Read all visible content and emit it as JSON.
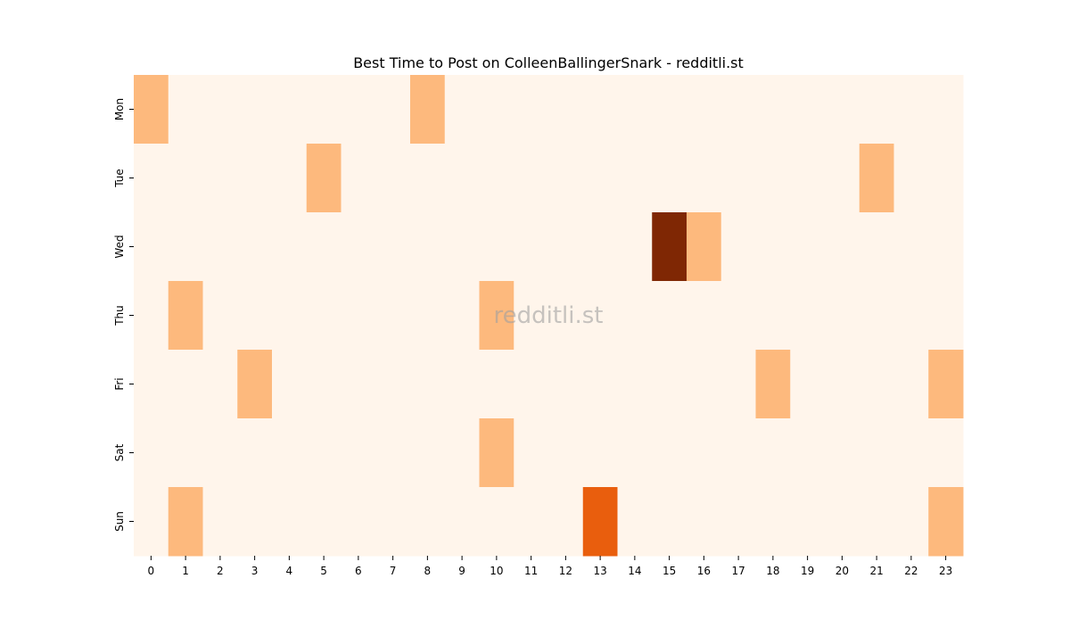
{
  "chart_data": {
    "type": "heatmap",
    "title": "Best Time to Post on ColleenBallingerSnark - redditli.st",
    "watermark": "redditli.st",
    "xlabel": "",
    "ylabel": "",
    "x": [
      "0",
      "1",
      "2",
      "3",
      "4",
      "5",
      "6",
      "7",
      "8",
      "9",
      "10",
      "11",
      "12",
      "13",
      "14",
      "15",
      "16",
      "17",
      "18",
      "19",
      "20",
      "21",
      "22",
      "23"
    ],
    "y": [
      "Mon",
      "Tue",
      "Wed",
      "Thu",
      "Fri",
      "Sat",
      "Sun"
    ],
    "values": [
      [
        1,
        0,
        0,
        0,
        0,
        0,
        0,
        0,
        1,
        0,
        0,
        0,
        0,
        0,
        0,
        0,
        0,
        0,
        0,
        0,
        0,
        0,
        0,
        0
      ],
      [
        0,
        0,
        0,
        0,
        0,
        1,
        0,
        0,
        0,
        0,
        0,
        0,
        0,
        0,
        0,
        0,
        0,
        0,
        0,
        0,
        0,
        1,
        0,
        0
      ],
      [
        0,
        0,
        0,
        0,
        0,
        0,
        0,
        0,
        0,
        0,
        0,
        0,
        0,
        0,
        0,
        3,
        1,
        0,
        0,
        0,
        0,
        0,
        0,
        0
      ],
      [
        0,
        1,
        0,
        0,
        0,
        0,
        0,
        0,
        0,
        0,
        1,
        0,
        0,
        0,
        0,
        0,
        0,
        0,
        0,
        0,
        0,
        0,
        0,
        0
      ],
      [
        0,
        0,
        0,
        1,
        0,
        0,
        0,
        0,
        0,
        0,
        0,
        0,
        0,
        0,
        0,
        0,
        0,
        0,
        1,
        0,
        0,
        0,
        0,
        1
      ],
      [
        0,
        0,
        0,
        0,
        0,
        0,
        0,
        0,
        0,
        0,
        1,
        0,
        0,
        0,
        0,
        0,
        0,
        0,
        0,
        0,
        0,
        0,
        0,
        0
      ],
      [
        0,
        1,
        0,
        0,
        0,
        0,
        0,
        0,
        0,
        0,
        0,
        0,
        0,
        2,
        0,
        0,
        0,
        0,
        0,
        0,
        0,
        0,
        0,
        1
      ]
    ],
    "colorscale": [
      "#fff5eb",
      "#fdb97d",
      "#e95e0d",
      "#7f2704"
    ],
    "grid": false,
    "legend": "none"
  }
}
